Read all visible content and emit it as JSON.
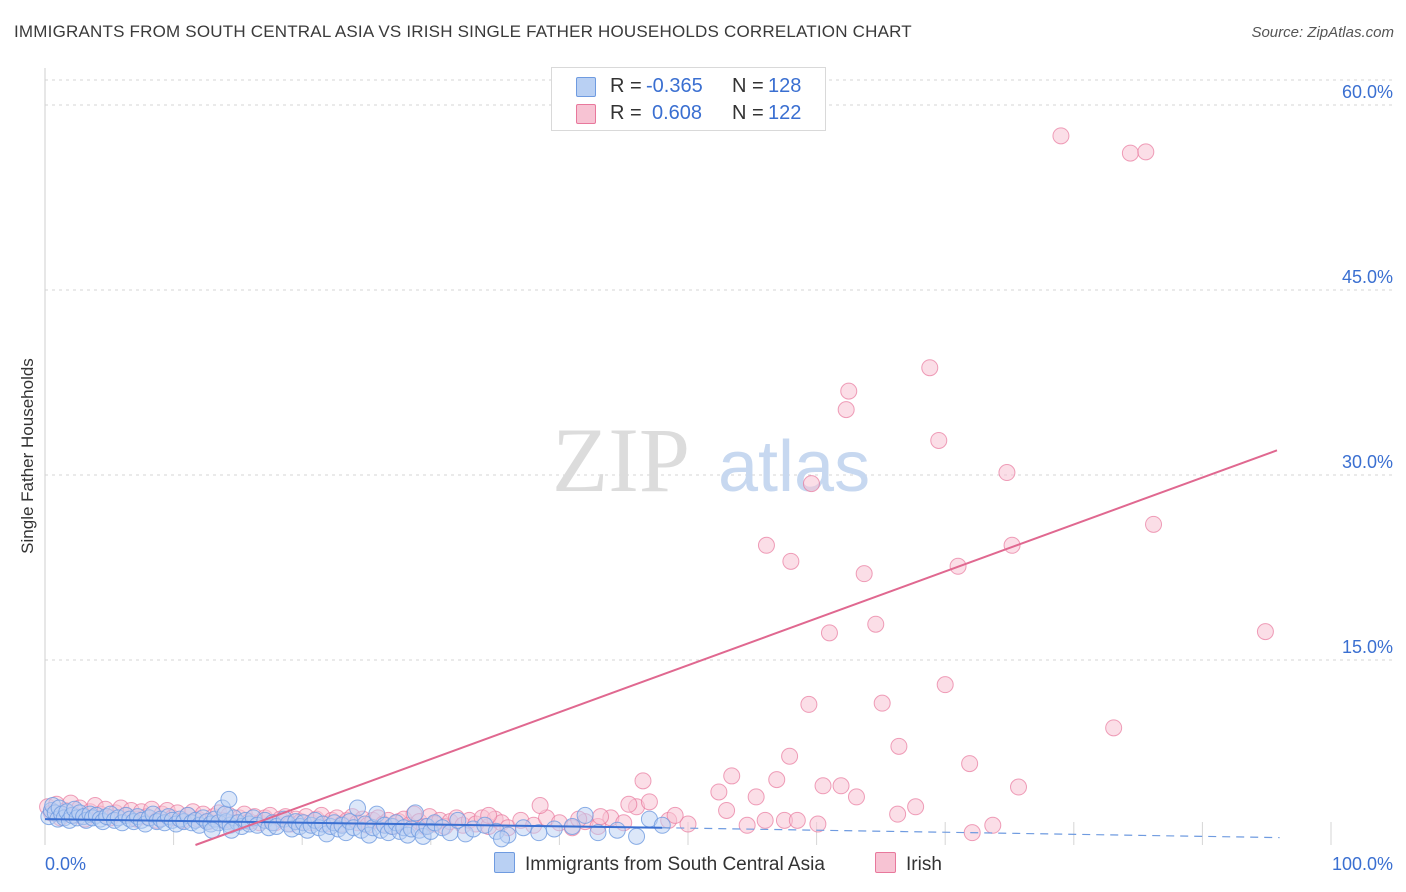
{
  "title": "IMMIGRANTS FROM SOUTH CENTRAL ASIA VS IRISH SINGLE FATHER HOUSEHOLDS CORRELATION CHART",
  "source": "Source: ZipAtlas.com",
  "watermark": {
    "zip": "ZIP",
    "atlas": "atlas"
  },
  "colors": {
    "blue": "#6f9be0",
    "blue_fill": "#b9d0f3",
    "pink": "#e8789c",
    "pink_fill": "#f7c3d3",
    "axis_text": "#3a6fd1",
    "grid": "#d6d6d6"
  },
  "stats": {
    "r_label": "R =",
    "n_label": "N =",
    "rows": [
      {
        "series": "Immigrants from South Central Asia",
        "r": "-0.365",
        "n": "128"
      },
      {
        "series": "Irish",
        "r": "0.608",
        "n": "122"
      }
    ]
  },
  "legend": [
    "Immigrants from South Central Asia",
    "Irish"
  ],
  "chart_data": {
    "type": "scatter",
    "title": "IMMIGRANTS FROM SOUTH CENTRAL ASIA VS IRISH SINGLE FATHER HOUSEHOLDS CORRELATION CHART",
    "xlabel": "",
    "ylabel": "Single Father Households",
    "xlim": [
      0,
      100
    ],
    "ylim": [
      0,
      63
    ],
    "x_tick_labels": [
      "0.0%",
      "100.0%"
    ],
    "y_ticks": [
      15,
      30,
      45,
      60
    ],
    "y_tick_labels": [
      "15.0%",
      "30.0%",
      "45.0%",
      "60.0%"
    ],
    "grid": true,
    "series": [
      {
        "name": "Immigrants from South Central Asia",
        "color": "#6f9be0",
        "points": [
          [
            0.3,
            2.3
          ],
          [
            0.5,
            2.8
          ],
          [
            0.6,
            3.2
          ],
          [
            0.8,
            2.6
          ],
          [
            1.0,
            2.1
          ],
          [
            1.1,
            3.0
          ],
          [
            1.3,
            2.5
          ],
          [
            1.5,
            2.2
          ],
          [
            1.7,
            2.7
          ],
          [
            1.9,
            2.0
          ],
          [
            2.1,
            2.4
          ],
          [
            2.3,
            2.9
          ],
          [
            2.5,
            2.2
          ],
          [
            2.7,
            2.6
          ],
          [
            3.0,
            2.3
          ],
          [
            3.2,
            2.0
          ],
          [
            3.5,
            2.5
          ],
          [
            3.7,
            2.2
          ],
          [
            4.0,
            2.4
          ],
          [
            4.3,
            2.1
          ],
          [
            4.5,
            1.9
          ],
          [
            4.8,
            2.3
          ],
          [
            5.1,
            2.5
          ],
          [
            5.4,
            2.0
          ],
          [
            5.7,
            2.2
          ],
          [
            6.0,
            1.8
          ],
          [
            6.3,
            2.4
          ],
          [
            6.6,
            2.1
          ],
          [
            6.9,
            1.9
          ],
          [
            7.2,
            2.3
          ],
          [
            7.5,
            2.0
          ],
          [
            7.8,
            1.7
          ],
          [
            8.1,
            2.2
          ],
          [
            8.4,
            2.5
          ],
          [
            8.7,
            1.9
          ],
          [
            9.0,
            2.1
          ],
          [
            9.3,
            1.8
          ],
          [
            9.6,
            2.3
          ],
          [
            9.9,
            2.0
          ],
          [
            10.2,
            1.7
          ],
          [
            10.5,
            2.1
          ],
          [
            10.8,
            1.9
          ],
          [
            11.1,
            2.4
          ],
          [
            11.4,
            1.8
          ],
          [
            11.7,
            2.0
          ],
          [
            12.0,
            1.6
          ],
          [
            12.3,
            2.2
          ],
          [
            12.6,
            1.9
          ],
          [
            12.9,
            1.7
          ],
          [
            13.2,
            2.1
          ],
          [
            13.5,
            1.8
          ],
          [
            13.8,
            3.0
          ],
          [
            14.1,
            1.9
          ],
          [
            14.4,
            1.6
          ],
          [
            14.7,
            2.2
          ],
          [
            15.0,
            1.8
          ],
          [
            15.3,
            1.5
          ],
          [
            15.6,
            2.0
          ],
          [
            15.9,
            1.7
          ],
          [
            14.5,
            1.2
          ],
          [
            16.2,
            2.2
          ],
          [
            16.5,
            1.6
          ],
          [
            14.0,
            2.5
          ],
          [
            13.0,
            1.2
          ],
          [
            17.1,
            2.0
          ],
          [
            17.4,
            1.4
          ],
          [
            17.7,
            1.8
          ],
          [
            18.0,
            1.5
          ],
          [
            14.3,
            3.7
          ],
          [
            18.6,
            2.1
          ],
          [
            18.9,
            1.7
          ],
          [
            19.2,
            1.3
          ],
          [
            19.5,
            1.9
          ],
          [
            19.8,
            1.5
          ],
          [
            20.1,
            1.8
          ],
          [
            20.4,
            1.2
          ],
          [
            20.7,
            1.6
          ],
          [
            21.0,
            2.0
          ],
          [
            21.3,
            1.4
          ],
          [
            21.6,
            1.7
          ],
          [
            21.9,
            0.9
          ],
          [
            22.2,
            1.5
          ],
          [
            22.5,
            1.8
          ],
          [
            22.8,
            1.3
          ],
          [
            23.1,
            1.6
          ],
          [
            23.4,
            1.0
          ],
          [
            23.7,
            1.9
          ],
          [
            24.0,
            1.4
          ],
          [
            24.3,
            3.0
          ],
          [
            24.6,
            1.2
          ],
          [
            24.9,
            1.7
          ],
          [
            25.2,
            0.8
          ],
          [
            25.5,
            1.4
          ],
          [
            25.8,
            2.5
          ],
          [
            26.1,
            1.2
          ],
          [
            26.4,
            1.6
          ],
          [
            26.7,
            1.0
          ],
          [
            27.0,
            1.5
          ],
          [
            27.3,
            1.8
          ],
          [
            27.6,
            1.1
          ],
          [
            27.9,
            1.4
          ],
          [
            28.2,
            0.8
          ],
          [
            28.5,
            1.3
          ],
          [
            28.8,
            2.6
          ],
          [
            29.1,
            1.2
          ],
          [
            29.4,
            0.7
          ],
          [
            29.7,
            1.5
          ],
          [
            30.0,
            1.1
          ],
          [
            30.3,
            1.8
          ],
          [
            30.9,
            1.4
          ],
          [
            31.5,
            1.0
          ],
          [
            32.1,
            2.0
          ],
          [
            32.7,
            0.9
          ],
          [
            33.3,
            1.3
          ],
          [
            34.2,
            1.6
          ],
          [
            35.1,
            1.1
          ],
          [
            36.0,
            0.8
          ],
          [
            37.2,
            1.4
          ],
          [
            38.4,
            1.0
          ],
          [
            39.6,
            1.3
          ],
          [
            41.0,
            1.5
          ],
          [
            42.0,
            2.4
          ],
          [
            43.0,
            1.0
          ],
          [
            44.5,
            1.2
          ],
          [
            46.0,
            0.7
          ],
          [
            35.5,
            0.5
          ],
          [
            47.0,
            2.1
          ],
          [
            48.0,
            1.6
          ]
        ],
        "trendline": {
          "x": [
            0,
            48
          ],
          "y": [
            2.1,
            1.4
          ],
          "style": "solid"
        },
        "trendline_extension": {
          "x": [
            48,
            96
          ],
          "y": [
            1.4,
            0.6
          ],
          "style": "dashed"
        }
      },
      {
        "name": "Irish",
        "color": "#e8789c",
        "points": [
          [
            0.2,
            3.1
          ],
          [
            0.5,
            2.6
          ],
          [
            0.9,
            3.3
          ],
          [
            1.2,
            2.2
          ],
          [
            1.6,
            2.8
          ],
          [
            2.0,
            3.4
          ],
          [
            2.3,
            2.4
          ],
          [
            2.7,
            3.0
          ],
          [
            3.1,
            2.1
          ],
          [
            3.5,
            2.7
          ],
          [
            3.9,
            3.2
          ],
          [
            4.3,
            2.5
          ],
          [
            4.7,
            2.9
          ],
          [
            5.1,
            2.2
          ],
          [
            5.5,
            2.6
          ],
          [
            5.9,
            3.0
          ],
          [
            6.3,
            2.4
          ],
          [
            6.7,
            2.8
          ],
          [
            7.1,
            2.1
          ],
          [
            7.5,
            2.7
          ],
          [
            7.9,
            2.3
          ],
          [
            8.3,
            2.9
          ],
          [
            8.7,
            2.0
          ],
          [
            9.1,
            2.5
          ],
          [
            9.5,
            2.8
          ],
          [
            9.9,
            2.2
          ],
          [
            10.3,
            2.6
          ],
          [
            10.7,
            2.0
          ],
          [
            11.1,
            2.4
          ],
          [
            11.5,
            2.7
          ],
          [
            11.9,
            2.1
          ],
          [
            12.3,
            2.5
          ],
          [
            12.7,
            1.9
          ],
          [
            13.1,
            2.3
          ],
          [
            13.5,
            2.6
          ],
          [
            13.9,
            2.0
          ],
          [
            14.3,
            2.4
          ],
          [
            14.7,
            1.8
          ],
          [
            15.1,
            2.2
          ],
          [
            15.5,
            2.5
          ],
          [
            15.9,
            1.9
          ],
          [
            16.3,
            2.3
          ],
          [
            16.7,
            1.8
          ],
          [
            17.1,
            2.2
          ],
          [
            17.5,
            2.4
          ],
          [
            17.9,
            1.8
          ],
          [
            18.3,
            2.1
          ],
          [
            18.7,
            2.3
          ],
          [
            19.1,
            1.7
          ],
          [
            19.5,
            2.1
          ],
          [
            19.9,
            1.9
          ],
          [
            20.3,
            2.3
          ],
          [
            20.7,
            1.8
          ],
          [
            21.1,
            2.1
          ],
          [
            21.5,
            2.4
          ],
          [
            21.9,
            1.7
          ],
          [
            22.3,
            2.0
          ],
          [
            22.7,
            2.2
          ],
          [
            23.1,
            1.7
          ],
          [
            23.5,
            2.0
          ],
          [
            23.9,
            2.3
          ],
          [
            24.3,
            1.8
          ],
          [
            24.7,
            2.1
          ],
          [
            25.1,
            1.6
          ],
          [
            25.5,
            2.0
          ],
          [
            25.9,
            2.2
          ],
          [
            26.3,
            1.7
          ],
          [
            26.7,
            2.0
          ],
          [
            27.1,
            1.5
          ],
          [
            27.5,
            1.9
          ],
          [
            27.9,
            2.1
          ],
          [
            28.3,
            1.6
          ],
          [
            28.7,
            2.5
          ],
          [
            29.1,
            1.9
          ],
          [
            29.5,
            1.5
          ],
          [
            29.9,
            2.3
          ],
          [
            30.3,
            1.7
          ],
          [
            30.7,
            2.0
          ],
          [
            31.1,
            1.5
          ],
          [
            31.5,
            1.9
          ],
          [
            32.0,
            2.2
          ],
          [
            32.5,
            1.6
          ],
          [
            33.0,
            2.0
          ],
          [
            33.5,
            1.7
          ],
          [
            34.0,
            2.2
          ],
          [
            34.5,
            1.5
          ],
          [
            35.0,
            2.1
          ],
          [
            35.5,
            1.8
          ],
          [
            36.0,
            1.4
          ],
          [
            37.0,
            2.0
          ],
          [
            38.0,
            1.6
          ],
          [
            39.0,
            2.2
          ],
          [
            40.0,
            1.8
          ],
          [
            41.0,
            1.4
          ],
          [
            42.0,
            1.9
          ],
          [
            43.0,
            1.5
          ],
          [
            44.0,
            2.2
          ],
          [
            45.0,
            1.8
          ],
          [
            46.0,
            3.1
          ],
          [
            47.0,
            3.5
          ],
          [
            38.5,
            3.2
          ],
          [
            48.5,
            2.0
          ],
          [
            50.0,
            1.7
          ],
          [
            49.0,
            2.4
          ],
          [
            41.5,
            2.1
          ],
          [
            53.0,
            2.8
          ],
          [
            56.0,
            2.0
          ],
          [
            57.5,
            2.0
          ],
          [
            58.5,
            2.0
          ],
          [
            46.5,
            5.2
          ],
          [
            56.1,
            24.3
          ],
          [
            58.0,
            23.0
          ],
          [
            59.6,
            29.3
          ],
          [
            61.0,
            17.2
          ],
          [
            62.5,
            36.8
          ],
          [
            62.3,
            35.3
          ],
          [
            63.7,
            22.0
          ],
          [
            64.6,
            17.9
          ],
          [
            68.8,
            38.7
          ],
          [
            69.5,
            32.8
          ],
          [
            71.0,
            22.6
          ],
          [
            74.8,
            30.2
          ]
        ],
        "trendline": {
          "x": [
            11.7,
            95.8
          ],
          "y": [
            0.0,
            32.0
          ],
          "style": "solid"
        }
      }
    ]
  },
  "extra_irish_points": [
    [
      53.4,
      5.6
    ],
    [
      56.9,
      5.3
    ],
    [
      57.9,
      7.2
    ],
    [
      59.4,
      11.4
    ],
    [
      60.5,
      4.8
    ],
    [
      61.9,
      4.8
    ],
    [
      63.1,
      3.9
    ],
    [
      65.1,
      11.5
    ],
    [
      66.4,
      8.0
    ],
    [
      70.0,
      13.0
    ],
    [
      71.9,
      6.6
    ],
    [
      73.7,
      1.6
    ],
    [
      75.2,
      24.3
    ],
    [
      75.7,
      4.7
    ],
    [
      79.0,
      57.5
    ],
    [
      84.4,
      56.1
    ],
    [
      85.6,
      56.2
    ],
    [
      86.2,
      26.0
    ],
    [
      83.1,
      9.5
    ],
    [
      94.9,
      17.3
    ],
    [
      52.4,
      4.3
    ],
    [
      55.3,
      3.9
    ],
    [
      60.1,
      1.7
    ],
    [
      66.3,
      2.5
    ],
    [
      67.7,
      3.1
    ],
    [
      72.1,
      1.0
    ],
    [
      54.6,
      1.6
    ],
    [
      43.2,
      2.3
    ],
    [
      45.4,
      3.3
    ],
    [
      34.5,
      2.4
    ]
  ]
}
